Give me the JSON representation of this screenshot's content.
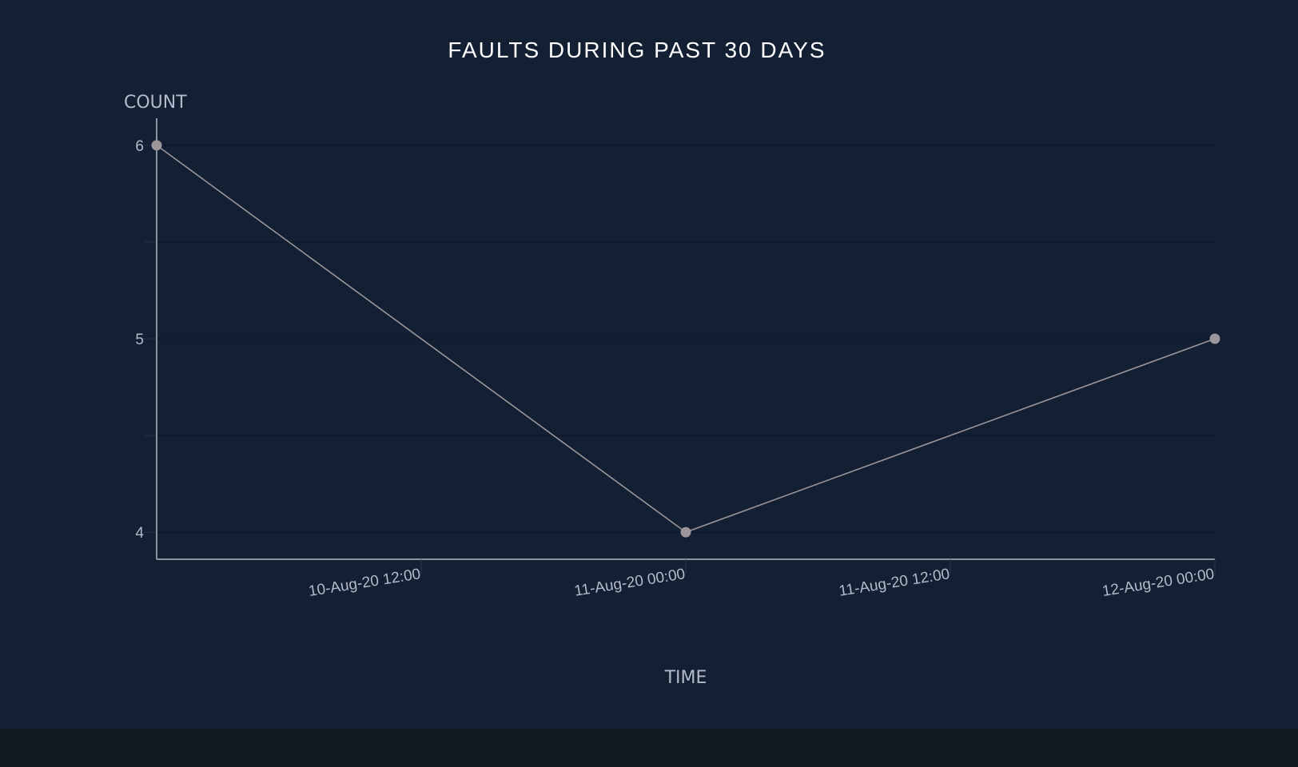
{
  "colors": {
    "background": "#131f33",
    "footer": "#0e1921",
    "title": "#ffffff",
    "axis_text": "#b4bac9",
    "axis_line": "#b3b8c4",
    "grid": "#0f1a2b",
    "series": "#9a969a"
  },
  "chart_data": {
    "type": "line",
    "title": "FAULTS DURING PAST 30 DAYS",
    "xlabel": "TIME",
    "ylabel": "COUNT",
    "x_type": "datetime",
    "xlim": [
      "10-Aug-20 00:00",
      "12-Aug-20 00:00"
    ],
    "ylim": [
      3.86,
      6.14
    ],
    "grid": true,
    "x_ticks": [
      "10-Aug-20 12:00",
      "11-Aug-20 00:00",
      "11-Aug-20 12:00",
      "12-Aug-20 00:00"
    ],
    "y_ticks": [
      "4",
      "5",
      "6"
    ],
    "series": [
      {
        "x": [
          "10-Aug-20 00:00",
          "11-Aug-20 00:00",
          "12-Aug-20 00:00"
        ],
        "values": [
          6,
          4,
          5
        ]
      }
    ]
  }
}
